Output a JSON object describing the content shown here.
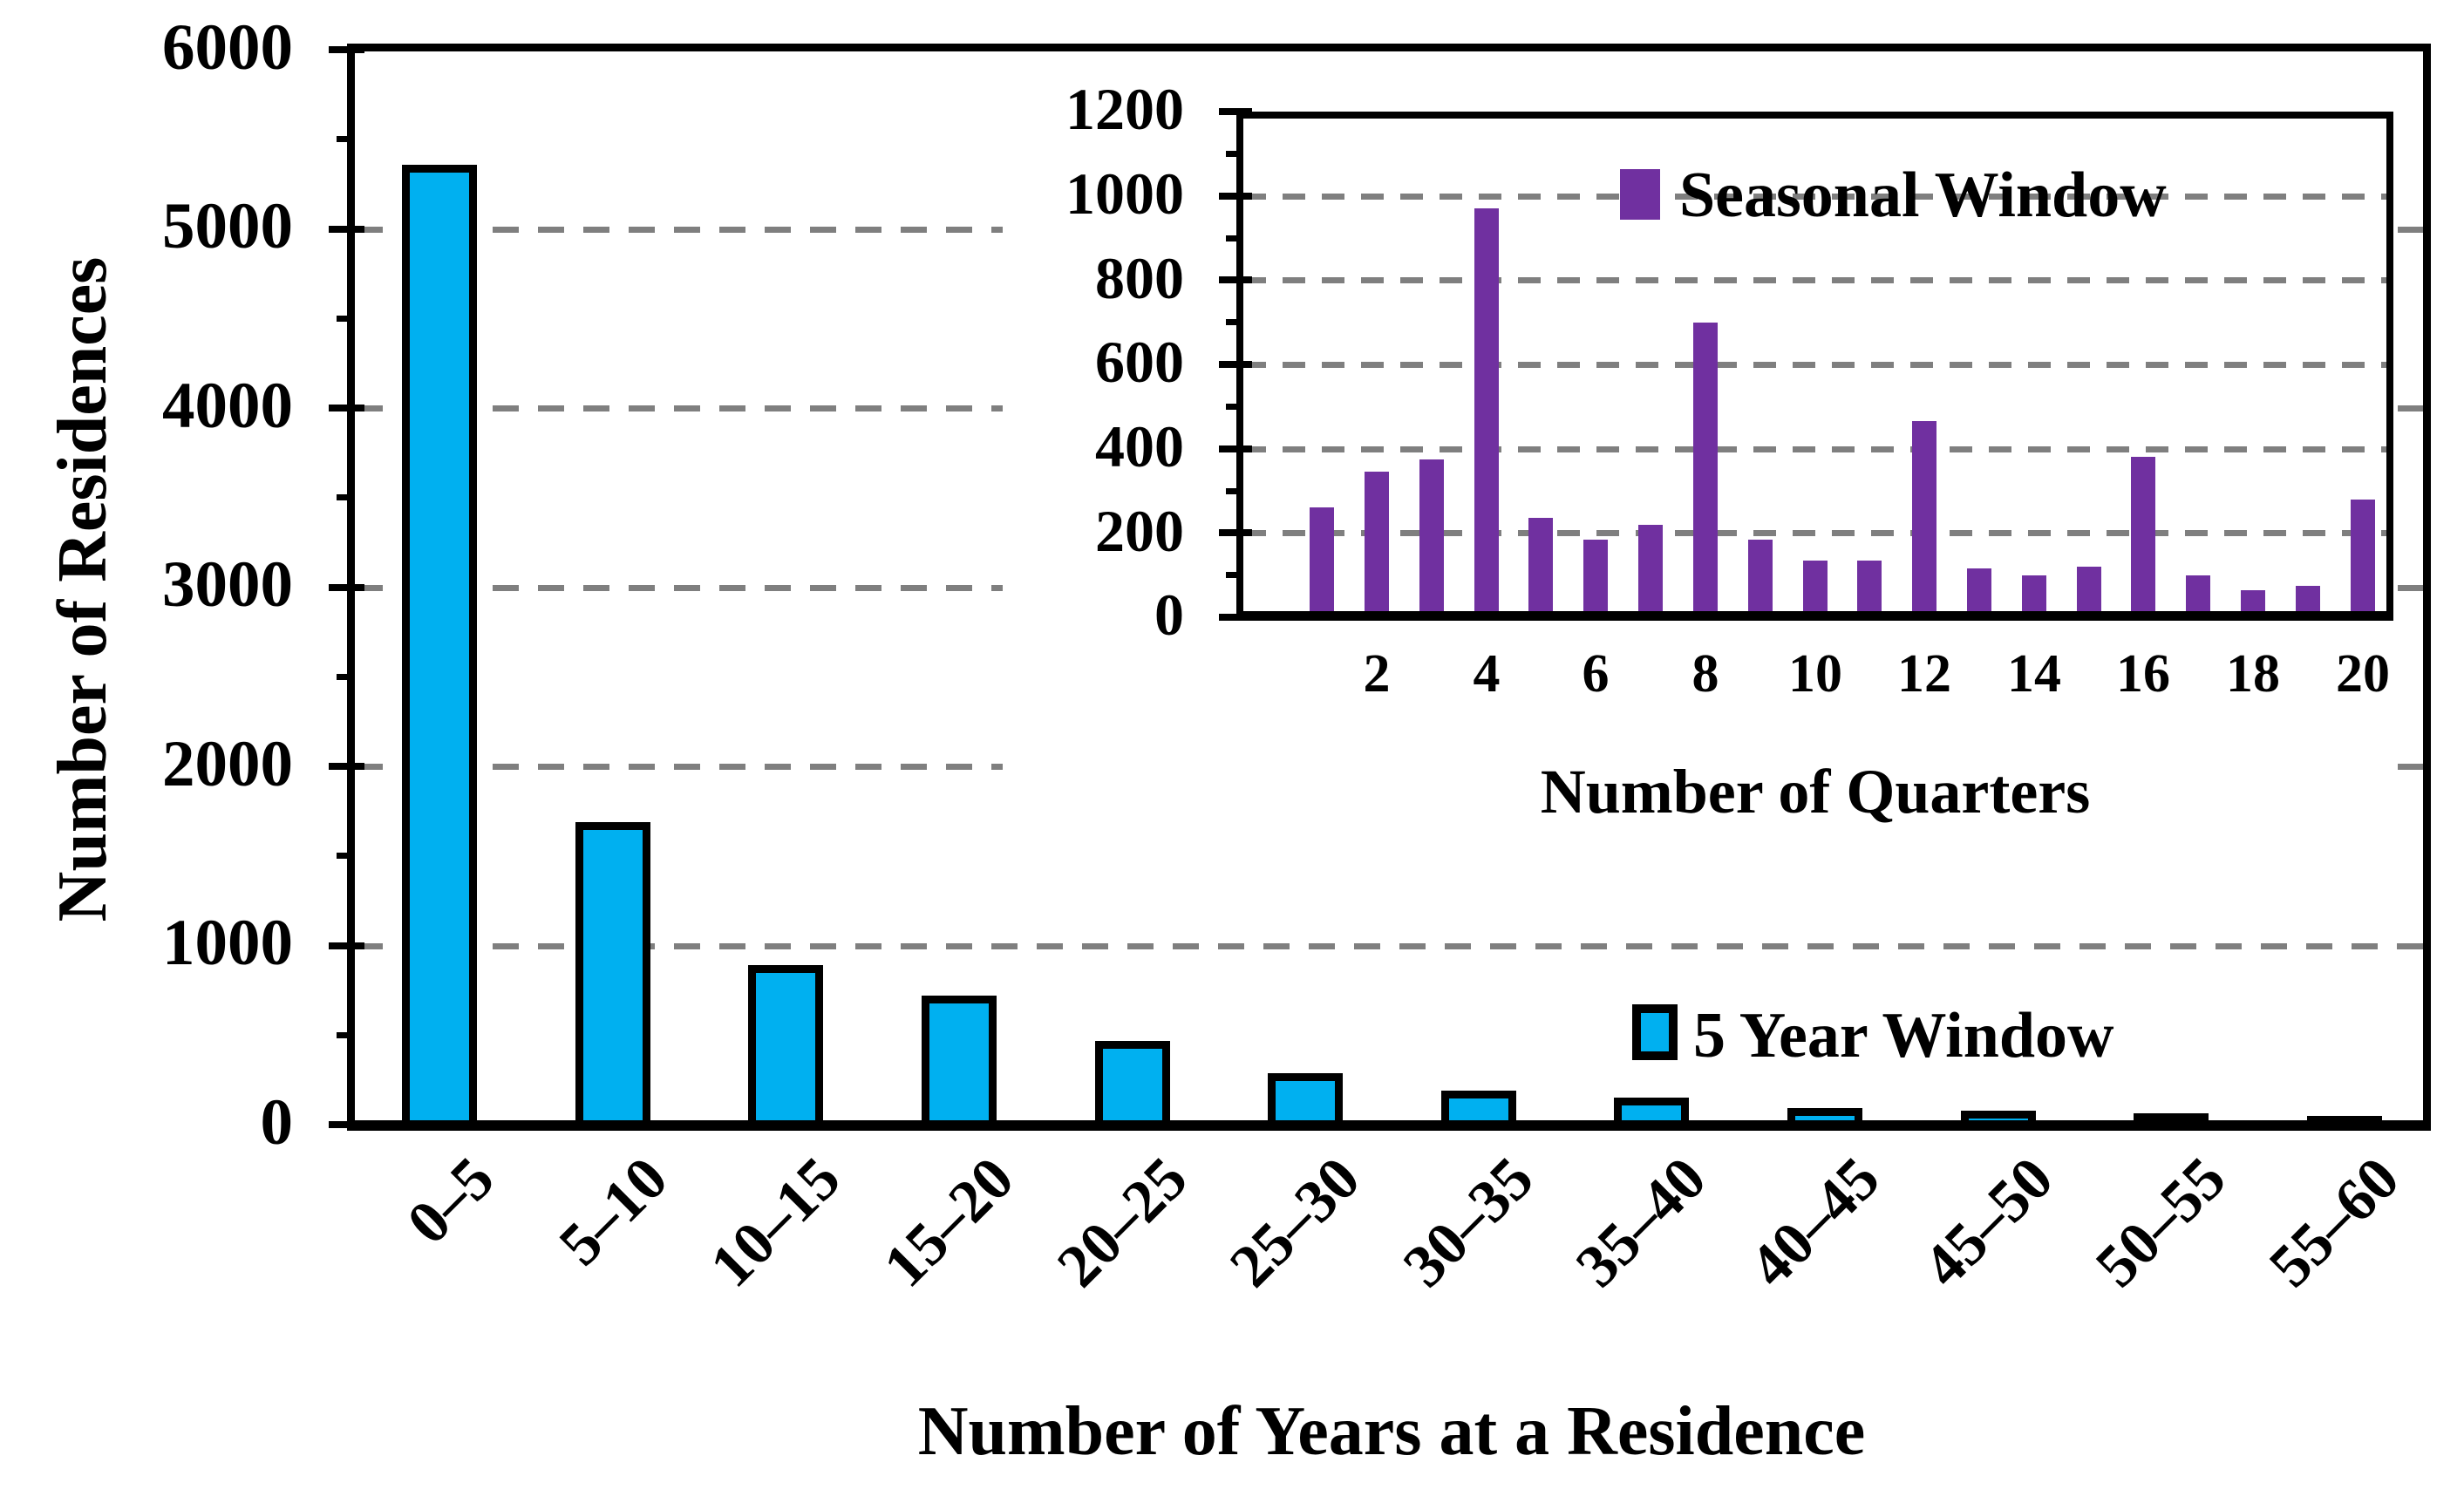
{
  "figure": {
    "background": "#ffffff",
    "text_color": "#000000",
    "gridline_color": "#7F7F7F",
    "frame_color": "#000000"
  },
  "chart_data": [
    {
      "type": "bar",
      "name": "main-histogram",
      "title": "",
      "xlabel": "Number of Years at a Residence",
      "ylabel": "Number of Residences",
      "categories": [
        "0–5",
        "5–10",
        "10–15",
        "15–20",
        "20–25",
        "25–30",
        "30–35",
        "35–40",
        "40–45",
        "45–50",
        "50–55",
        "55–60"
      ],
      "values": [
        5330,
        1660,
        860,
        690,
        440,
        260,
        160,
        120,
        65,
        50,
        35,
        20
      ],
      "ylim": [
        0,
        6000
      ],
      "yticks": [
        0,
        1000,
        2000,
        3000,
        4000,
        5000,
        6000
      ],
      "ytick_minor_interval": 500,
      "grid": "dashed-horizontal",
      "gridlines_at": [
        1000,
        2000,
        3000,
        4000,
        5000
      ],
      "gridline_color": "#7F7F7F",
      "bar_color": "#00B0F0",
      "bar_border_color": "#000000",
      "legend": {
        "label": "5 Year Window",
        "marker": "outlined-square",
        "position": "inside-lower-right"
      }
    },
    {
      "type": "bar",
      "name": "inset-histogram",
      "title": "",
      "xlabel": "Number of Quarters",
      "ylabel": "",
      "x": [
        1,
        2,
        3,
        4,
        5,
        6,
        7,
        8,
        9,
        10,
        11,
        12,
        13,
        14,
        15,
        16,
        17,
        18,
        19,
        20
      ],
      "values": [
        260,
        345,
        375,
        970,
        235,
        185,
        220,
        700,
        185,
        135,
        135,
        465,
        115,
        100,
        120,
        380,
        100,
        65,
        75,
        280
      ],
      "xtick_labels": [
        "2",
        "4",
        "6",
        "8",
        "10",
        "12",
        "14",
        "16",
        "18",
        "20"
      ],
      "ylim": [
        0,
        1200
      ],
      "yticks": [
        0,
        200,
        400,
        600,
        800,
        1000,
        1200
      ],
      "ytick_minor_interval": 100,
      "grid": "dashed-horizontal",
      "gridlines_at": [
        200,
        400,
        600,
        800,
        1000
      ],
      "gridline_color": "#7F7F7F",
      "bar_color": "#7030A0",
      "legend": {
        "label": "Seasonal Window",
        "marker": "solid-square",
        "position": "inside-top"
      }
    }
  ]
}
